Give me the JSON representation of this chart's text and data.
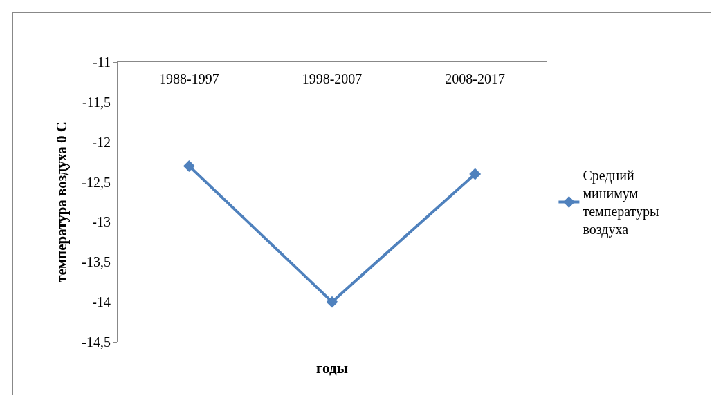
{
  "chart_data": {
    "type": "line",
    "xlabel": "годы",
    "ylabel": "температура воздуха 0 С",
    "categories": [
      "1988-1997",
      "1998-2007",
      "2008-2017"
    ],
    "series": [
      {
        "name": "Средний минимум температуры воздуха",
        "color": "#4f81bd",
        "values": [
          -12.3,
          -14,
          -12.4
        ]
      }
    ],
    "ylim": [
      -14.5,
      -11
    ],
    "yticks": [
      -11,
      {
        "value": -11.5,
        "label": "-11,5"
      },
      -12,
      {
        "value": -12.5,
        "label": "-12,5"
      },
      -13,
      {
        "value": -13.5,
        "label": "-13,5"
      },
      -14,
      {
        "value": -14.5,
        "label": "-14,5"
      }
    ],
    "grid": "y",
    "legend": "right",
    "marker": "diamond",
    "line_style": "solid"
  }
}
